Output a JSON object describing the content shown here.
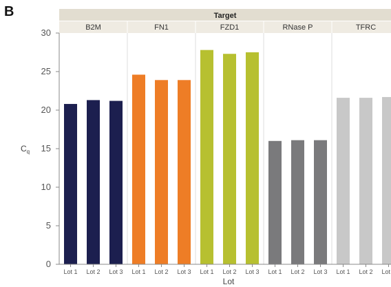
{
  "panel_label": "B",
  "chart_data": {
    "type": "bar",
    "facet_title": "Target",
    "xlabel": "Lot",
    "ylabel": "C",
    "ylabel_subscript": "q",
    "ylim": [
      0,
      30
    ],
    "yticks": [
      0,
      5,
      10,
      15,
      20,
      25,
      30
    ],
    "categories": [
      "Lot 1",
      "Lot 2",
      "Lot 3"
    ],
    "grid": false,
    "groups": [
      {
        "name": "B2M",
        "color": "#1c1f4f",
        "values": [
          20.8,
          21.3,
          21.2
        ]
      },
      {
        "name": "FN1",
        "color": "#ee7d26",
        "values": [
          24.6,
          23.9,
          23.9
        ]
      },
      {
        "name": "FZD1",
        "color": "#b7c030",
        "values": [
          27.8,
          27.3,
          27.5
        ]
      },
      {
        "name": "RNase P",
        "color": "#7a7a7c",
        "values": [
          16.0,
          16.1,
          16.1
        ]
      },
      {
        "name": "TFRC",
        "color": "#c8c8c8",
        "values": [
          21.6,
          21.6,
          21.7
        ]
      }
    ]
  }
}
